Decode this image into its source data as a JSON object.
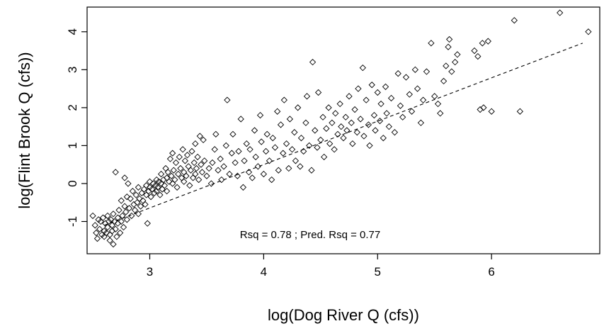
{
  "chart_data": {
    "type": "scatter",
    "title": "",
    "xlabel": "log(Dog River Q (cfs))",
    "ylabel": "log(Flint Brook Q (cfs))",
    "xlim": [
      2.45,
      6.95
    ],
    "ylim": [
      -1.85,
      4.65
    ],
    "x_ticks": [
      3,
      4,
      5,
      6
    ],
    "y_ticks": [
      -1,
      0,
      1,
      2,
      3,
      4
    ],
    "grid": false,
    "annotation": "Rsq = 0.78 ; Pred. Rsq = 0.77",
    "trend_line": {
      "style": "dashed",
      "x": [
        2.6,
        6.8
      ],
      "y": [
        -1.1,
        3.7
      ]
    },
    "series": [
      {
        "marker": "diamond-open",
        "points": [
          [
            2.5,
            -0.85
          ],
          [
            2.52,
            -1.1
          ],
          [
            2.53,
            -1.3
          ],
          [
            2.54,
            -1.45
          ],
          [
            2.55,
            -0.95
          ],
          [
            2.56,
            -1.2
          ],
          [
            2.57,
            -1.0
          ],
          [
            2.58,
            -1.35
          ],
          [
            2.59,
            -0.9
          ],
          [
            2.6,
            -1.25
          ],
          [
            2.6,
            -1.4
          ],
          [
            2.61,
            -1.05
          ],
          [
            2.62,
            -1.3
          ],
          [
            2.63,
            -0.85
          ],
          [
            2.63,
            -1.15
          ],
          [
            2.64,
            -1.0
          ],
          [
            2.65,
            -1.5
          ],
          [
            2.65,
            -1.35
          ],
          [
            2.66,
            -0.95
          ],
          [
            2.67,
            -1.1
          ],
          [
            2.67,
            -1.25
          ],
          [
            2.68,
            -0.8
          ],
          [
            2.68,
            -1.6
          ],
          [
            2.69,
            -1.0
          ],
          [
            2.7,
            -1.2
          ],
          [
            2.7,
            0.3
          ],
          [
            2.71,
            -1.4
          ],
          [
            2.72,
            -0.9
          ],
          [
            2.72,
            -1.05
          ],
          [
            2.73,
            -0.7
          ],
          [
            2.74,
            -1.3
          ],
          [
            2.75,
            -1.0
          ],
          [
            2.75,
            -0.45
          ],
          [
            2.76,
            -0.85
          ],
          [
            2.77,
            -1.15
          ],
          [
            2.78,
            -0.6
          ],
          [
            2.78,
            0.15
          ],
          [
            2.79,
            -0.75
          ],
          [
            2.8,
            -0.95
          ],
          [
            2.8,
            -0.35
          ],
          [
            2.81,
            0.0
          ],
          [
            2.82,
            -0.65
          ],
          [
            2.83,
            -0.4
          ],
          [
            2.84,
            -0.85
          ],
          [
            2.85,
            -0.2
          ],
          [
            2.86,
            -0.55
          ],
          [
            2.87,
            -0.7
          ],
          [
            2.88,
            -0.3
          ],
          [
            2.89,
            -0.5
          ],
          [
            2.9,
            -0.8
          ],
          [
            2.9,
            -0.1
          ],
          [
            2.91,
            -0.4
          ],
          [
            2.92,
            -0.6
          ],
          [
            2.93,
            -0.25
          ],
          [
            2.94,
            -0.45
          ],
          [
            2.95,
            -0.15
          ],
          [
            2.96,
            -0.55
          ],
          [
            2.97,
            -0.05
          ],
          [
            2.97,
            -0.3
          ],
          [
            2.98,
            -1.05
          ],
          [
            2.99,
            -0.2
          ],
          [
            3.0,
            -0.1
          ],
          [
            3.0,
            0.05
          ],
          [
            3.01,
            -0.35
          ],
          [
            3.02,
            -0.15
          ],
          [
            3.03,
            0.0
          ],
          [
            3.04,
            -0.25
          ],
          [
            3.05,
            -0.05
          ],
          [
            3.06,
            0.1
          ],
          [
            3.06,
            -0.2
          ],
          [
            3.07,
            -0.1
          ],
          [
            3.08,
            0.05
          ],
          [
            3.09,
            -0.3
          ],
          [
            3.1,
            0.0
          ],
          [
            3.1,
            0.25
          ],
          [
            3.11,
            -0.15
          ],
          [
            3.12,
            0.1
          ],
          [
            3.13,
            -0.05
          ],
          [
            3.14,
            0.4
          ],
          [
            3.15,
            0.15
          ],
          [
            3.15,
            -0.2
          ],
          [
            3.16,
            0.3
          ],
          [
            3.17,
            0.05
          ],
          [
            3.18,
            0.65
          ],
          [
            3.19,
            0.2
          ],
          [
            3.2,
            0.0
          ],
          [
            3.2,
            0.8
          ],
          [
            3.21,
            0.35
          ],
          [
            3.22,
            0.1
          ],
          [
            3.23,
            0.55
          ],
          [
            3.24,
            -0.1
          ],
          [
            3.25,
            0.25
          ],
          [
            3.26,
            0.7
          ],
          [
            3.27,
            0.4
          ],
          [
            3.28,
            0.15
          ],
          [
            3.29,
            0.9
          ],
          [
            3.3,
            0.3
          ],
          [
            3.3,
            0.05
          ],
          [
            3.31,
            0.6
          ],
          [
            3.32,
            0.2
          ],
          [
            3.33,
            0.75
          ],
          [
            3.34,
            0.45
          ],
          [
            3.35,
            -0.05
          ],
          [
            3.36,
            0.35
          ],
          [
            3.37,
            0.85
          ],
          [
            3.38,
            0.15
          ],
          [
            3.39,
            0.55
          ],
          [
            3.4,
            0.25
          ],
          [
            3.4,
            1.05
          ],
          [
            3.41,
            0.4
          ],
          [
            3.42,
            0.7
          ],
          [
            3.43,
            0.1
          ],
          [
            3.44,
            1.25
          ],
          [
            3.45,
            0.5
          ],
          [
            3.46,
            0.3
          ],
          [
            3.47,
            1.15
          ],
          [
            3.48,
            0.6
          ],
          [
            3.5,
            0.2
          ],
          [
            3.52,
            0.4
          ],
          [
            3.54,
            0.0
          ],
          [
            3.55,
            0.55
          ],
          [
            3.57,
            0.9
          ],
          [
            3.58,
            1.3
          ],
          [
            3.6,
            0.35
          ],
          [
            3.62,
            0.65
          ],
          [
            3.63,
            0.1
          ],
          [
            3.65,
            0.45
          ],
          [
            3.67,
            1.0
          ],
          [
            3.68,
            2.2
          ],
          [
            3.7,
            0.25
          ],
          [
            3.72,
            0.8
          ],
          [
            3.73,
            1.3
          ],
          [
            3.75,
            0.55
          ],
          [
            3.77,
            0.2
          ],
          [
            3.78,
            0.85
          ],
          [
            3.8,
            1.7
          ],
          [
            3.82,
            -0.1
          ],
          [
            3.83,
            0.6
          ],
          [
            3.85,
            1.05
          ],
          [
            3.87,
            0.3
          ],
          [
            3.88,
            0.9
          ],
          [
            3.9,
            0.15
          ],
          [
            3.92,
            1.4
          ],
          [
            3.93,
            0.7
          ],
          [
            3.95,
            0.45
          ],
          [
            3.97,
            1.8
          ],
          [
            3.98,
            1.1
          ],
          [
            4.0,
            0.25
          ],
          [
            4.02,
            0.85
          ],
          [
            4.03,
            1.3
          ],
          [
            4.05,
            0.6
          ],
          [
            4.07,
            0.1
          ],
          [
            4.08,
            1.2
          ],
          [
            4.1,
            0.95
          ],
          [
            4.12,
            1.9
          ],
          [
            4.13,
            0.35
          ],
          [
            4.15,
            1.55
          ],
          [
            4.17,
            0.8
          ],
          [
            4.18,
            2.2
          ],
          [
            4.2,
            1.05
          ],
          [
            4.22,
            0.4
          ],
          [
            4.23,
            1.7
          ],
          [
            4.25,
            0.9
          ],
          [
            4.27,
            1.35
          ],
          [
            4.28,
            0.6
          ],
          [
            4.3,
            2.0
          ],
          [
            4.32,
            0.45
          ],
          [
            4.33,
            1.2
          ],
          [
            4.35,
            0.85
          ],
          [
            4.37,
            1.6
          ],
          [
            4.38,
            2.3
          ],
          [
            4.4,
            1.0
          ],
          [
            4.42,
            0.35
          ],
          [
            4.43,
            3.2
          ],
          [
            4.45,
            1.4
          ],
          [
            4.47,
            0.95
          ],
          [
            4.48,
            2.4
          ],
          [
            4.5,
            1.15
          ],
          [
            4.52,
            1.75
          ],
          [
            4.53,
            0.7
          ],
          [
            4.55,
            1.45
          ],
          [
            4.57,
            2.0
          ],
          [
            4.58,
            1.05
          ],
          [
            4.6,
            1.6
          ],
          [
            4.62,
            0.9
          ],
          [
            4.63,
            1.85
          ],
          [
            4.65,
            1.3
          ],
          [
            4.67,
            2.1
          ],
          [
            4.68,
            1.5
          ],
          [
            4.7,
            1.2
          ],
          [
            4.72,
            1.75
          ],
          [
            4.73,
            1.4
          ],
          [
            4.75,
            2.3
          ],
          [
            4.77,
            1.6
          ],
          [
            4.78,
            1.05
          ],
          [
            4.8,
            1.95
          ],
          [
            4.82,
            1.35
          ],
          [
            4.83,
            2.5
          ],
          [
            4.85,
            1.7
          ],
          [
            4.87,
            3.05
          ],
          [
            4.88,
            1.25
          ],
          [
            4.9,
            2.2
          ],
          [
            4.92,
            1.55
          ],
          [
            4.93,
            1.0
          ],
          [
            4.95,
            2.6
          ],
          [
            4.97,
            1.8
          ],
          [
            4.98,
            1.4
          ],
          [
            5.0,
            2.4
          ],
          [
            5.02,
            1.65
          ],
          [
            5.03,
            2.1
          ],
          [
            5.05,
            1.2
          ],
          [
            5.07,
            2.55
          ],
          [
            5.08,
            1.85
          ],
          [
            5.1,
            1.5
          ],
          [
            5.12,
            2.25
          ],
          [
            5.15,
            1.35
          ],
          [
            5.18,
            2.9
          ],
          [
            5.2,
            2.05
          ],
          [
            5.22,
            1.75
          ],
          [
            5.25,
            2.8
          ],
          [
            5.28,
            2.35
          ],
          [
            5.3,
            1.9
          ],
          [
            5.33,
            3.0
          ],
          [
            5.35,
            2.5
          ],
          [
            5.38,
            1.6
          ],
          [
            5.4,
            2.2
          ],
          [
            5.43,
            2.95
          ],
          [
            5.47,
            3.7
          ],
          [
            5.5,
            2.3
          ],
          [
            5.53,
            2.1
          ],
          [
            5.55,
            1.85
          ],
          [
            5.58,
            2.7
          ],
          [
            5.6,
            3.1
          ],
          [
            5.62,
            3.6
          ],
          [
            5.63,
            3.8
          ],
          [
            5.65,
            2.95
          ],
          [
            5.68,
            3.2
          ],
          [
            5.7,
            3.4
          ],
          [
            5.85,
            3.5
          ],
          [
            5.88,
            3.35
          ],
          [
            5.9,
            1.95
          ],
          [
            5.92,
            3.7
          ],
          [
            5.93,
            2.0
          ],
          [
            5.97,
            3.75
          ],
          [
            6.0,
            1.9
          ],
          [
            6.2,
            4.3
          ],
          [
            6.25,
            1.9
          ],
          [
            6.6,
            4.5
          ],
          [
            6.85,
            4.0
          ]
        ]
      }
    ]
  }
}
